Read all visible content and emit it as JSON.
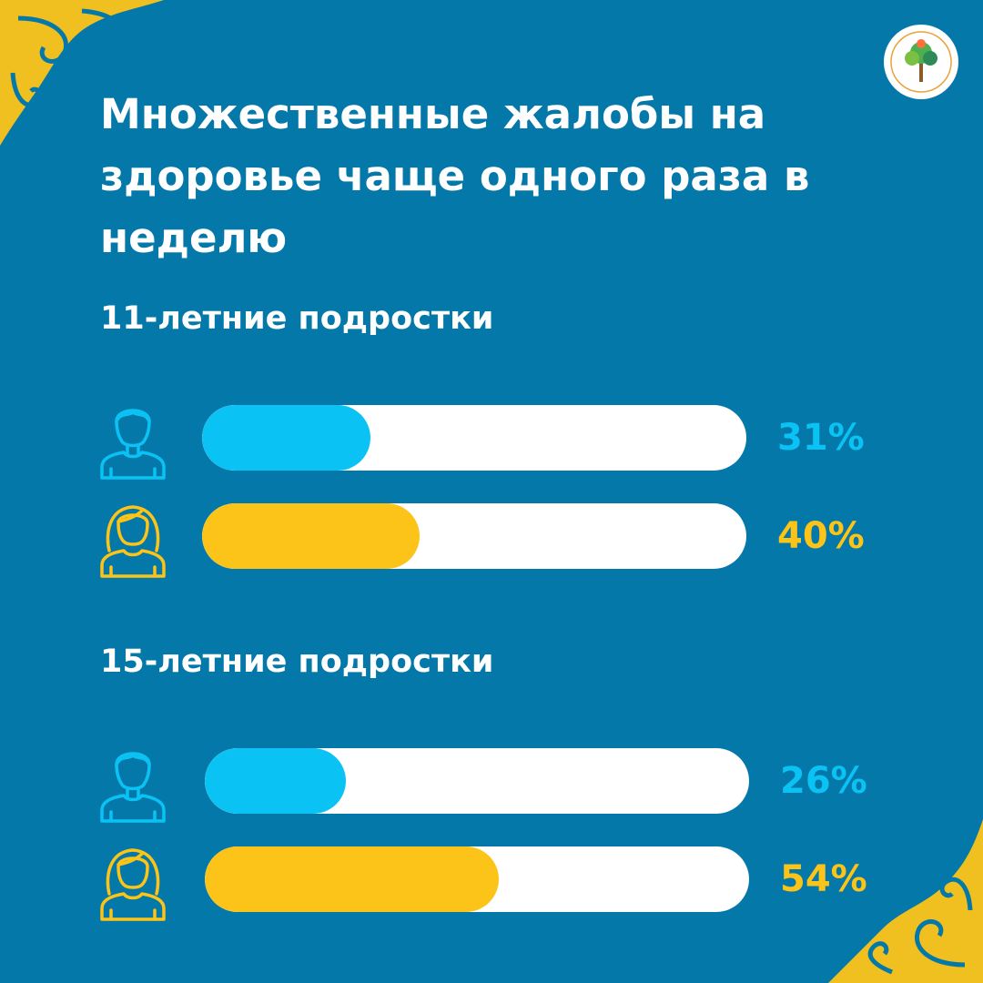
{
  "title": "Множественные жалобы на здоровье чаще одного раза в неделю",
  "colors": {
    "background": "#0478a8",
    "boy": "#0bc2f5",
    "girl": "#fcc418",
    "track": "#ffffff"
  },
  "icons": {
    "boy": "boy-avatar-icon",
    "girl": "girl-avatar-icon",
    "logo": "tree-logo-icon",
    "ornament": "kazakh-ornament-icon"
  },
  "chart_data": [
    {
      "type": "bar",
      "title": "11-летние подростки",
      "categories": [
        "boy",
        "girl"
      ],
      "values": [
        31,
        40
      ],
      "labels": [
        "31%",
        "40%"
      ],
      "ylim": [
        0,
        100
      ]
    },
    {
      "type": "bar",
      "title": "15-летние подростки",
      "categories": [
        "boy",
        "girl"
      ],
      "values": [
        26,
        54
      ],
      "labels": [
        "26%",
        "54%"
      ],
      "ylim": [
        0,
        100
      ]
    }
  ]
}
